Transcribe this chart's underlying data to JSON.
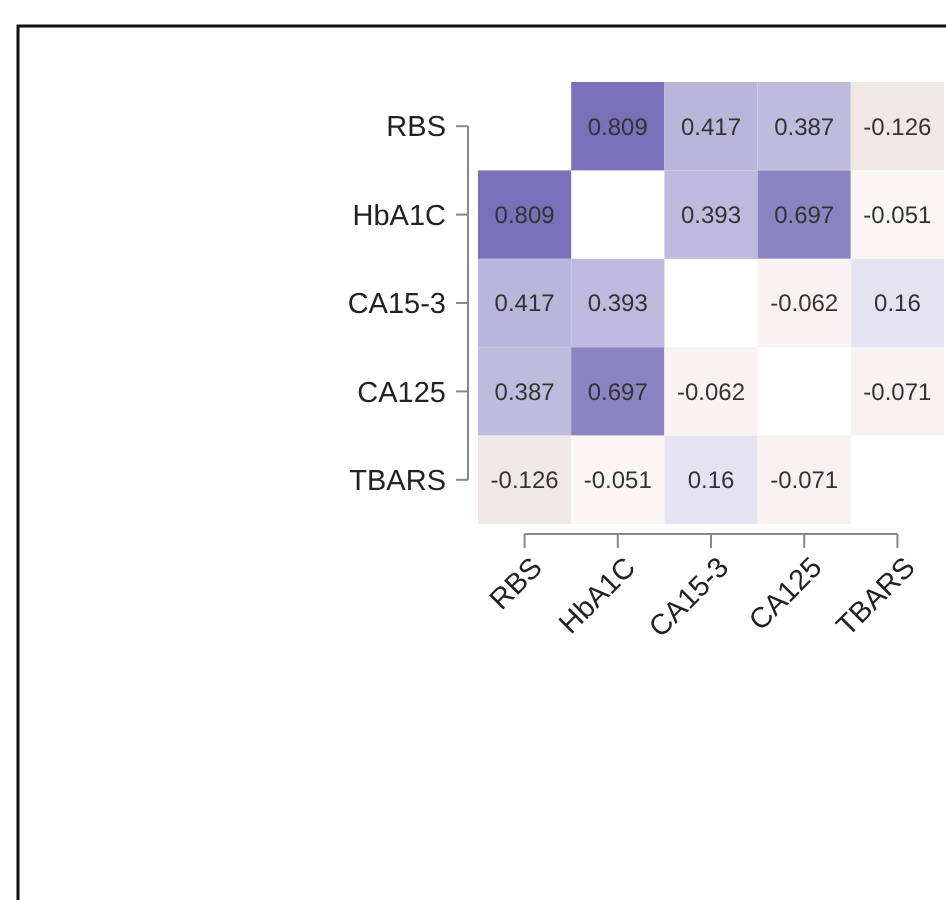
{
  "chart_data": {
    "type": "heatmap",
    "categories": [
      "RBS",
      "HbA1C",
      "CA15-3",
      "CA125",
      "TBARS"
    ],
    "y_categories": [
      "RBS",
      "HbA1C",
      "CA15-3",
      "CA125",
      "TBARS"
    ],
    "cells": [
      [
        null,
        0.809,
        0.417,
        0.387,
        -0.126
      ],
      [
        0.809,
        null,
        0.393,
        0.697,
        -0.051
      ],
      [
        0.417,
        0.393,
        null,
        -0.062,
        0.16
      ],
      [
        0.387,
        0.697,
        -0.062,
        null,
        -0.071
      ],
      [
        -0.126,
        -0.051,
        0.16,
        -0.071,
        null
      ]
    ],
    "data_labels": true
  }
}
